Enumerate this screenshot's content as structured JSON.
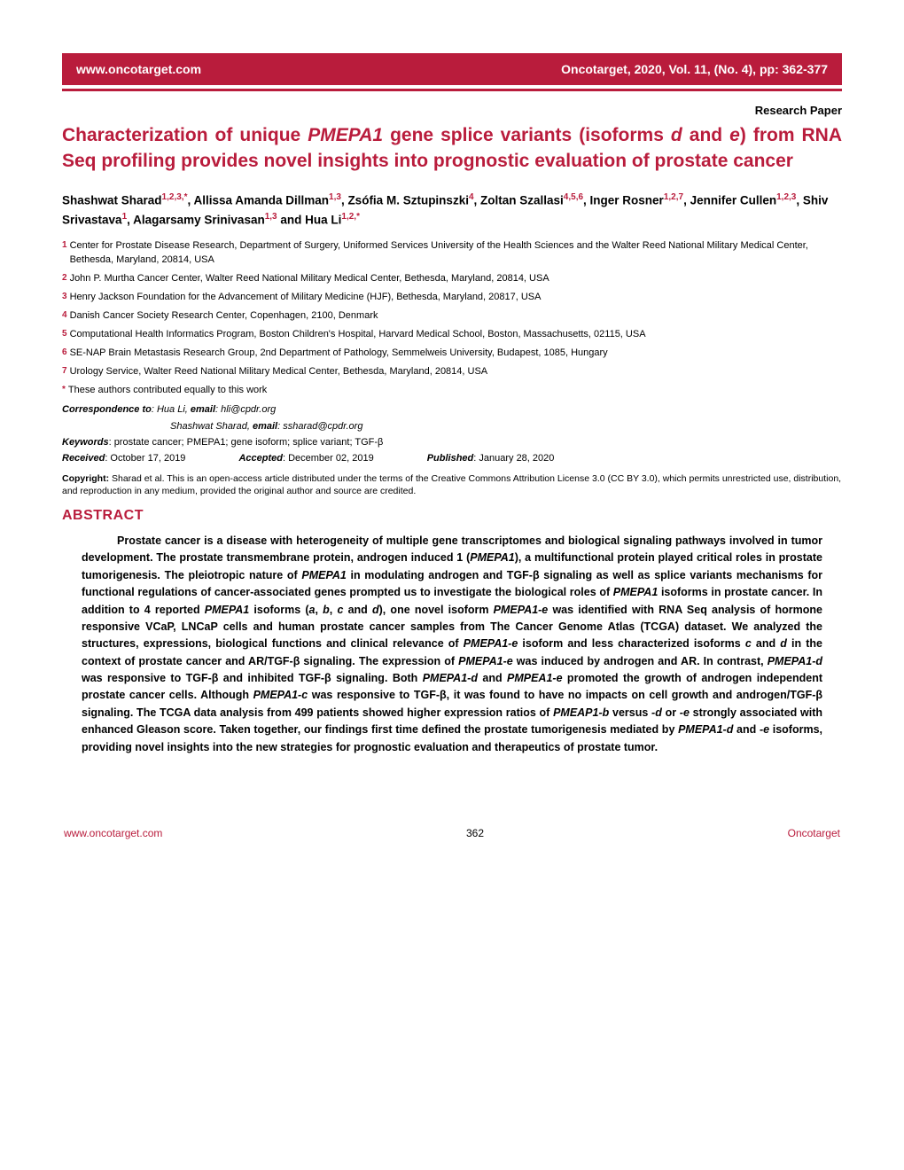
{
  "header": {
    "website": "www.oncotarget.com",
    "citation": "Oncotarget, 2020, Vol. 11, (No. 4), pp: 362-377"
  },
  "paperType": "Research Paper",
  "title_html": "Characterization of unique <em>PMEPA1</em> gene splice variants (isoforms <em>d</em> and <em>e</em>) from RNA Seq profiling provides novel insights into prognostic evaluation of prostate cancer",
  "authors_html": "Shashwat Sharad<sup>1,2,3,*</sup>, Allissa Amanda Dillman<sup>1,3</sup>, Zsófia M. Sztupinszki<sup>4</sup>, Zoltan Szallasi<sup>4,5,6</sup>, Inger Rosner<sup>1,2,7</sup>, Jennifer Cullen<sup>1,2,3</sup>, Shiv Srivastava<sup>1</sup>, Alagarsamy Srinivasan<sup>1,3</sup> and Hua Li<sup>1,2,*</sup>",
  "affiliations": [
    {
      "n": "1",
      "t": "Center for Prostate Disease Research, Department of Surgery, Uniformed Services University of the Health Sciences and the Walter Reed National Military Medical Center, Bethesda, Maryland, 20814, USA"
    },
    {
      "n": "2",
      "t": "John P. Murtha Cancer Center, Walter Reed National Military Medical Center, Bethesda, Maryland, 20814, USA"
    },
    {
      "n": "3",
      "t": "Henry Jackson Foundation for the Advancement of Military Medicine (HJF), Bethesda, Maryland, 20817, USA"
    },
    {
      "n": "4",
      "t": "Danish Cancer Society Research Center, Copenhagen, 2100, Denmark"
    },
    {
      "n": "5",
      "t": "Computational Health Informatics Program, Boston Children's Hospital, Harvard Medical School, Boston, Massachusetts, 02115, USA"
    },
    {
      "n": "6",
      "t": "SE-NAP Brain Metastasis Research Group, 2nd Department of Pathology, Semmelweis University, Budapest, 1085, Hungary"
    },
    {
      "n": "7",
      "t": "Urology Service, Walter Reed National Military Medical Center, Bethesda, Maryland, 20814, USA"
    },
    {
      "n": "*",
      "t": "These authors contributed equally to this work"
    }
  ],
  "correspondence": {
    "label": "Correspondence to",
    "c1_html": ": Hua Li, <b>email</b>: hli@cpdr.org",
    "c2_html": "Shashwat Sharad, <b>email</b>: ssharad@cpdr.org"
  },
  "keywords": {
    "label": "Keywords",
    "text": ": prostate cancer; PMEPA1; gene isoform; splice variant; TGF-β"
  },
  "dates": {
    "received": {
      "label": "Received",
      "text": ": October 17, 2019"
    },
    "accepted": {
      "label": "Accepted",
      "text": ": December 02, 2019"
    },
    "published": {
      "label": "Published",
      "text": ": January 28, 2020"
    }
  },
  "copyright": {
    "label": "Copyright:",
    "text": " Sharad et al. This is an open-access article distributed under the terms of the Creative Commons Attribution License 3.0 (CC BY 3.0), which permits unrestricted use, distribution, and reproduction in any medium, provided the original author and source are credited."
  },
  "abstractHeading": "ABSTRACT",
  "abstract_html": "<span class=\"indent\"></span>Prostate cancer is a disease with heterogeneity of multiple gene transcriptomes and biological signaling pathways involved in tumor development. The prostate transmembrane protein, androgen induced 1 (<em>PMEPA1</em>), a multifunctional protein played critical roles in prostate tumorigenesis. The pleiotropic nature of <em>PMEPA1</em> in modulating androgen and TGF-β signaling as well as splice variants mechanisms for functional regulations of cancer-associated genes prompted us to investigate the biological roles of <em>PMEPA1</em> isoforms in prostate cancer. In addition to 4 reported <em>PMEPA1</em> isoforms (<em>a</em>, <em>b</em>, <em>c</em> and <em>d</em>), one novel isoform <em>PMEPA1-e</em> was identified with RNA Seq analysis of hormone responsive VCaP, LNCaP cells and human prostate cancer samples from The Cancer Genome Atlas (TCGA) dataset. We analyzed the structures, expressions, biological functions and clinical relevance of <em>PMEPA1-e</em> isoform and less characterized isoforms <em>c</em> and <em>d</em> in the context of prostate cancer and AR/TGF-β signaling. The expression of <em>PMEPA1-e</em> was induced by androgen and AR. In contrast, <em>PMEPA1-d</em> was responsive to TGF-β and inhibited TGF-β signaling. Both <em>PMEPA1-d</em> and <em>PMPEA1-e</em> promoted the growth of androgen independent prostate cancer cells. Although <em>PMEPA1-c</em> was responsive to TGF-β, it was found to have no impacts on cell growth and androgen/TGF-β signaling. The TCGA data analysis from 499 patients showed higher expression ratios of <em>PMEAP1-b</em> versus <em>-d</em> or <em>-e</em> strongly associated with enhanced Gleason score. Taken together, our findings first time defined the prostate tumorigenesis mediated by <em>PMEPA1-d</em> and <em>-e</em> isoforms, providing novel insights into the new strategies for prognostic evaluation and therapeutics of prostate tumor.",
  "footer": {
    "left": "www.oncotarget.com",
    "page": "362",
    "right": "Oncotarget"
  },
  "colors": {
    "brand": "#b91c3c",
    "text": "#000000",
    "bg": "#ffffff"
  }
}
